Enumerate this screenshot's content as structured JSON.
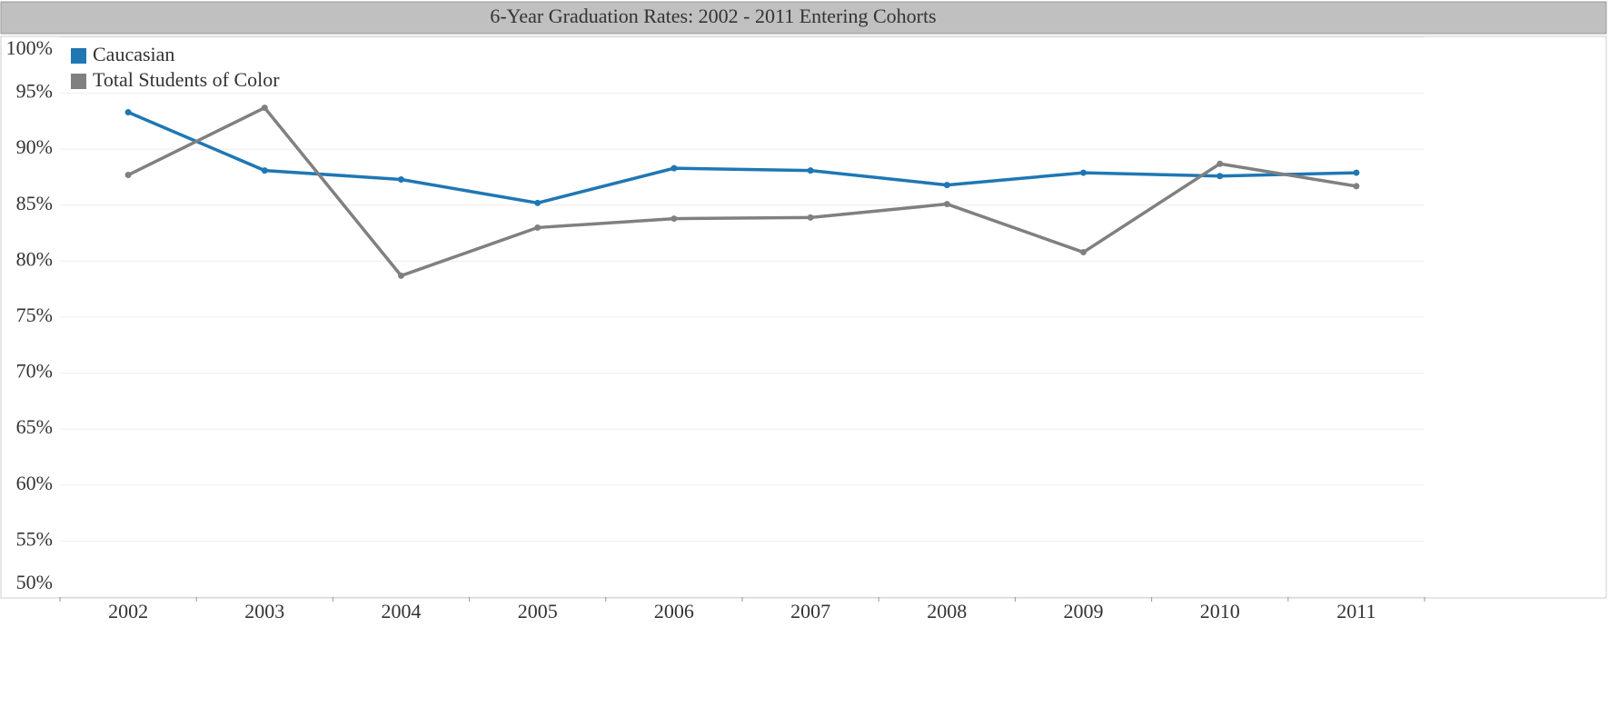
{
  "chart_data": {
    "type": "line",
    "title": "6-Year Graduation Rates: 2002 - 2011 Entering Cohorts",
    "categories": [
      "2002",
      "2003",
      "2004",
      "2005",
      "2006",
      "2007",
      "2008",
      "2009",
      "2010",
      "2011"
    ],
    "series": [
      {
        "name": "Caucasian",
        "color": "#1f77b4",
        "values": [
          93.3,
          88.1,
          87.3,
          85.2,
          88.3,
          88.1,
          86.8,
          87.9,
          87.6,
          87.9
        ]
      },
      {
        "name": "Total Students of Color",
        "color": "#808080",
        "values": [
          87.7,
          93.7,
          78.7,
          83.0,
          83.8,
          83.9,
          85.1,
          80.8,
          88.7,
          86.7
        ]
      }
    ],
    "ylim": [
      50,
      100
    ],
    "yticks": [
      {
        "value": 50,
        "label": "50%"
      },
      {
        "value": 55,
        "label": "55%"
      },
      {
        "value": 60,
        "label": "60%"
      },
      {
        "value": 65,
        "label": "65%"
      },
      {
        "value": 70,
        "label": "70%"
      },
      {
        "value": 75,
        "label": "75%"
      },
      {
        "value": 80,
        "label": "80%"
      },
      {
        "value": 85,
        "label": "85%"
      },
      {
        "value": 90,
        "label": "90%"
      },
      {
        "value": 95,
        "label": "95%"
      },
      {
        "value": 100,
        "label": "100%"
      }
    ],
    "grid": true,
    "legend": "top-left"
  }
}
